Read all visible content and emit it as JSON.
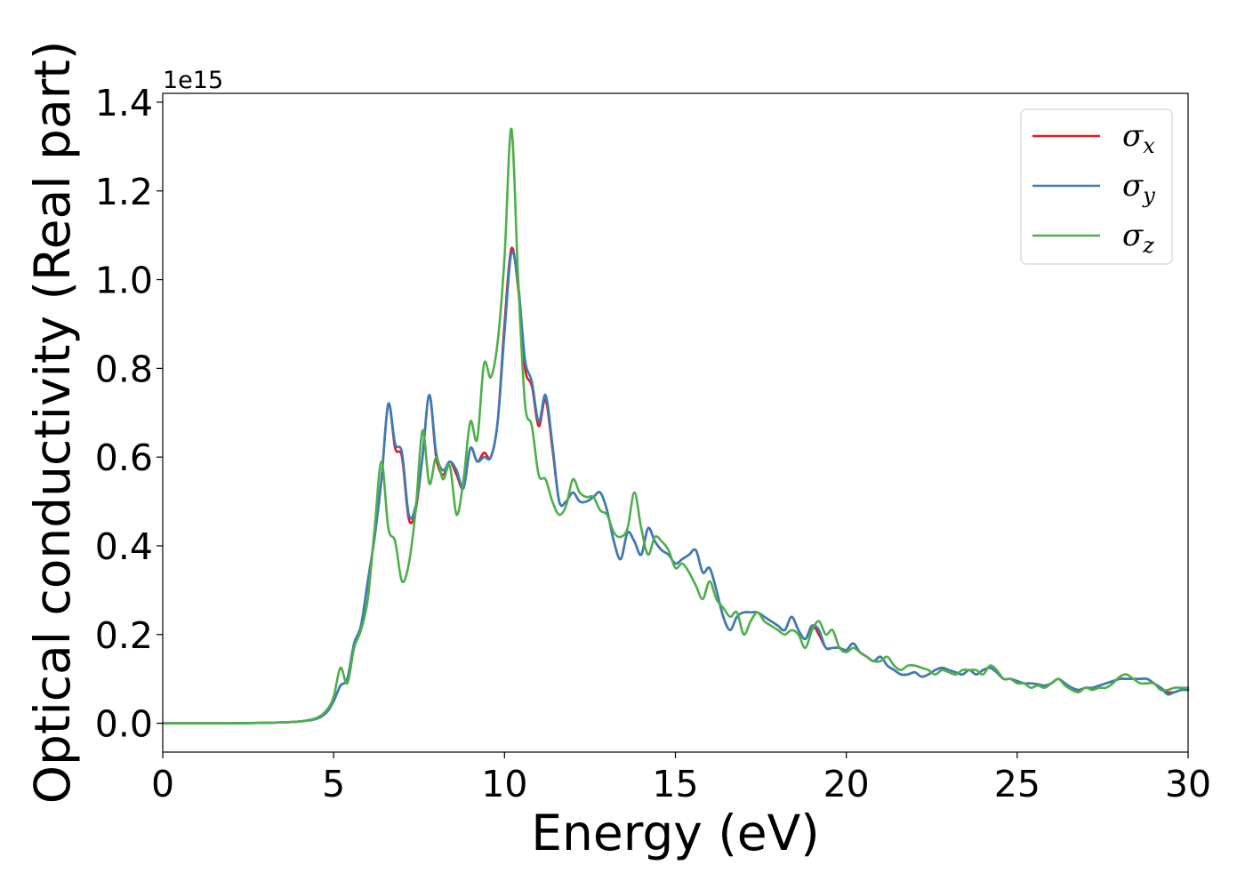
{
  "chart_data": {
    "type": "line",
    "xlabel": "Energy (eV)",
    "ylabel": "Optical conductivity (Real part)",
    "y_offset_text": "1e15",
    "xlim": [
      0,
      30
    ],
    "ylim": [
      -0.065,
      1.42
    ],
    "x_ticks": [
      0,
      5,
      10,
      15,
      20,
      25,
      30
    ],
    "x_tick_labels": [
      "0",
      "5",
      "10",
      "15",
      "20",
      "25",
      "30"
    ],
    "y_ticks": [
      0.0,
      0.2,
      0.4,
      0.6,
      0.8,
      1.0,
      1.2,
      1.4
    ],
    "y_tick_labels": [
      "0.0",
      "0.2",
      "0.4",
      "0.6",
      "0.8",
      "1.0",
      "1.2",
      "1.4"
    ],
    "grid": false,
    "legend_position": "top-right",
    "x": [
      0,
      1,
      2,
      3,
      3.5,
      4,
      4.5,
      4.8,
      5.0,
      5.2,
      5.4,
      5.6,
      5.8,
      6.0,
      6.2,
      6.4,
      6.6,
      6.8,
      7.0,
      7.2,
      7.4,
      7.6,
      7.8,
      8.0,
      8.2,
      8.4,
      8.6,
      8.8,
      9.0,
      9.2,
      9.4,
      9.6,
      9.8,
      10.0,
      10.2,
      10.4,
      10.6,
      10.8,
      11.0,
      11.2,
      11.4,
      11.6,
      11.8,
      12.0,
      12.2,
      12.4,
      12.6,
      12.8,
      13.0,
      13.2,
      13.4,
      13.6,
      13.8,
      14.0,
      14.2,
      14.4,
      14.6,
      14.8,
      15.0,
      15.2,
      15.4,
      15.6,
      15.8,
      16.0,
      16.2,
      16.4,
      16.6,
      16.8,
      17.0,
      17.2,
      17.4,
      17.6,
      17.8,
      18.0,
      18.2,
      18.4,
      18.6,
      18.8,
      19.0,
      19.2,
      19.4,
      19.6,
      19.8,
      20.0,
      20.2,
      20.4,
      20.6,
      20.8,
      21.0,
      21.2,
      21.4,
      21.6,
      21.8,
      22.0,
      22.2,
      22.4,
      22.6,
      22.8,
      23.0,
      23.2,
      23.4,
      23.6,
      23.8,
      24.0,
      24.2,
      24.4,
      24.6,
      24.8,
      25.0,
      25.2,
      25.4,
      25.6,
      25.8,
      26.0,
      26.2,
      26.4,
      26.6,
      26.8,
      27.0,
      27.2,
      27.4,
      27.6,
      27.8,
      28.0,
      28.2,
      28.4,
      28.6,
      28.8,
      29.0,
      29.2,
      29.4,
      29.6,
      29.8,
      30.0
    ],
    "series": [
      {
        "name": "σx",
        "label_base": "σ",
        "label_sub": "x",
        "color": "#e41a1c",
        "y": [
          0.0,
          0.0,
          0.0,
          0.001,
          0.002,
          0.004,
          0.01,
          0.025,
          0.05,
          0.085,
          0.1,
          0.18,
          0.22,
          0.32,
          0.42,
          0.55,
          0.72,
          0.62,
          0.6,
          0.46,
          0.48,
          0.6,
          0.74,
          0.6,
          0.56,
          0.59,
          0.56,
          0.53,
          0.62,
          0.59,
          0.61,
          0.6,
          0.68,
          0.9,
          1.07,
          0.98,
          0.8,
          0.76,
          0.67,
          0.73,
          0.62,
          0.5,
          0.5,
          0.52,
          0.5,
          0.5,
          0.51,
          0.52,
          0.48,
          0.41,
          0.37,
          0.43,
          0.41,
          0.38,
          0.44,
          0.41,
          0.39,
          0.38,
          0.36,
          0.37,
          0.38,
          0.39,
          0.34,
          0.35,
          0.3,
          0.24,
          0.21,
          0.24,
          0.25,
          0.25,
          0.25,
          0.24,
          0.23,
          0.22,
          0.21,
          0.24,
          0.21,
          0.19,
          0.22,
          0.2,
          0.17,
          0.17,
          0.17,
          0.165,
          0.18,
          0.16,
          0.15,
          0.14,
          0.15,
          0.13,
          0.12,
          0.11,
          0.11,
          0.115,
          0.105,
          0.11,
          0.12,
          0.125,
          0.12,
          0.115,
          0.11,
          0.12,
          0.11,
          0.12,
          0.125,
          0.115,
          0.1,
          0.1,
          0.095,
          0.09,
          0.09,
          0.088,
          0.085,
          0.09,
          0.1,
          0.09,
          0.08,
          0.075,
          0.08,
          0.08,
          0.085,
          0.09,
          0.095,
          0.1,
          0.1,
          0.1,
          0.1,
          0.1,
          0.09,
          0.08,
          0.07,
          0.07,
          0.075,
          0.075
        ]
      },
      {
        "name": "σy",
        "label_base": "σ",
        "label_sub": "y",
        "color": "#377eb8",
        "y": [
          0.0,
          0.0,
          0.0,
          0.001,
          0.002,
          0.004,
          0.01,
          0.025,
          0.05,
          0.085,
          0.1,
          0.18,
          0.22,
          0.32,
          0.42,
          0.55,
          0.72,
          0.63,
          0.61,
          0.47,
          0.49,
          0.6,
          0.74,
          0.61,
          0.57,
          0.59,
          0.57,
          0.53,
          0.62,
          0.59,
          0.6,
          0.6,
          0.68,
          0.88,
          1.06,
          0.99,
          0.82,
          0.77,
          0.68,
          0.74,
          0.63,
          0.5,
          0.5,
          0.52,
          0.5,
          0.5,
          0.51,
          0.52,
          0.48,
          0.41,
          0.37,
          0.43,
          0.41,
          0.38,
          0.44,
          0.41,
          0.39,
          0.38,
          0.36,
          0.37,
          0.38,
          0.39,
          0.34,
          0.35,
          0.3,
          0.24,
          0.21,
          0.24,
          0.25,
          0.25,
          0.25,
          0.24,
          0.23,
          0.22,
          0.21,
          0.24,
          0.21,
          0.19,
          0.22,
          0.21,
          0.17,
          0.17,
          0.17,
          0.165,
          0.18,
          0.16,
          0.15,
          0.14,
          0.15,
          0.13,
          0.12,
          0.11,
          0.11,
          0.115,
          0.105,
          0.11,
          0.12,
          0.125,
          0.12,
          0.115,
          0.11,
          0.12,
          0.11,
          0.12,
          0.125,
          0.115,
          0.1,
          0.1,
          0.095,
          0.09,
          0.09,
          0.088,
          0.085,
          0.09,
          0.1,
          0.09,
          0.08,
          0.075,
          0.08,
          0.08,
          0.085,
          0.09,
          0.095,
          0.1,
          0.1,
          0.1,
          0.1,
          0.1,
          0.09,
          0.08,
          0.065,
          0.07,
          0.075,
          0.075
        ]
      },
      {
        "name": "σz",
        "label_base": "σ",
        "label_sub": "z",
        "color": "#4daf4a",
        "y": [
          0.0,
          0.0,
          0.0,
          0.001,
          0.002,
          0.004,
          0.012,
          0.03,
          0.06,
          0.125,
          0.09,
          0.17,
          0.21,
          0.28,
          0.44,
          0.59,
          0.44,
          0.41,
          0.32,
          0.36,
          0.48,
          0.66,
          0.54,
          0.6,
          0.55,
          0.58,
          0.47,
          0.55,
          0.68,
          0.64,
          0.81,
          0.78,
          0.86,
          1.05,
          1.34,
          1.0,
          0.72,
          0.67,
          0.56,
          0.55,
          0.5,
          0.47,
          0.49,
          0.55,
          0.52,
          0.51,
          0.51,
          0.48,
          0.47,
          0.43,
          0.42,
          0.44,
          0.52,
          0.44,
          0.38,
          0.42,
          0.41,
          0.39,
          0.35,
          0.36,
          0.34,
          0.31,
          0.28,
          0.32,
          0.28,
          0.26,
          0.24,
          0.25,
          0.2,
          0.23,
          0.25,
          0.23,
          0.22,
          0.21,
          0.2,
          0.21,
          0.2,
          0.17,
          0.21,
          0.23,
          0.2,
          0.21,
          0.17,
          0.16,
          0.17,
          0.16,
          0.15,
          0.14,
          0.14,
          0.15,
          0.13,
          0.12,
          0.13,
          0.13,
          0.125,
          0.12,
          0.11,
          0.12,
          0.115,
          0.11,
          0.12,
          0.12,
          0.12,
          0.11,
          0.13,
          0.12,
          0.1,
          0.1,
          0.09,
          0.09,
          0.08,
          0.085,
          0.08,
          0.09,
          0.1,
          0.085,
          0.075,
          0.07,
          0.08,
          0.075,
          0.08,
          0.08,
          0.09,
          0.105,
          0.11,
          0.1,
          0.09,
          0.09,
          0.09,
          0.075,
          0.075,
          0.08,
          0.08,
          0.08
        ]
      }
    ]
  }
}
